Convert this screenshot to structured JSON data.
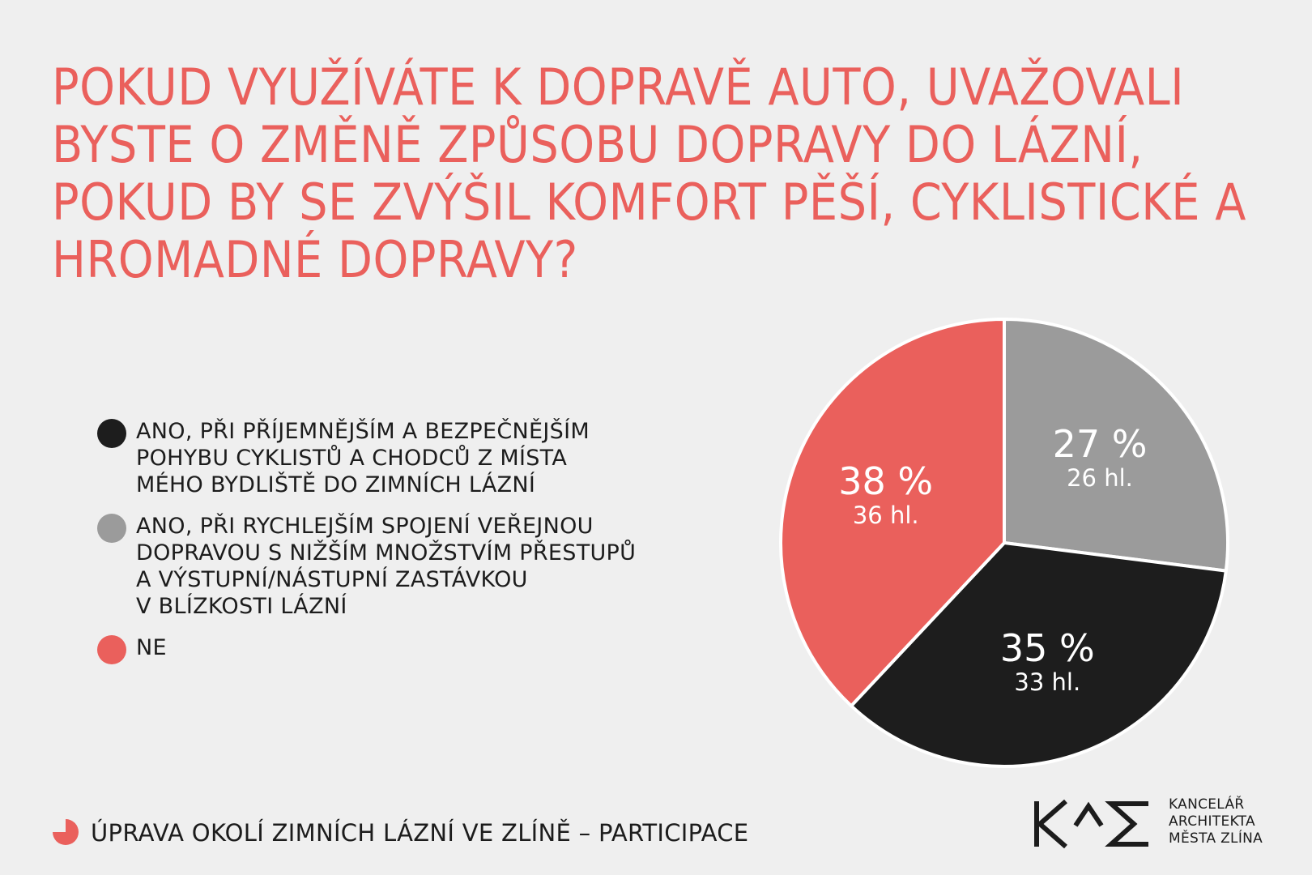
{
  "title": "POKUD VYUŽÍVÁTE K DOPRAVĚ AUTO, UVAŽOVALI BYSTE O ZMĚNĚ ZPŮSOBU DOPRAVY DO LÁZNÍ, POKUD BY SE ZVÝŠIL KOMFORT PĚŠÍ, CYKLISTICKÉ A HROMADNÉ DOPRAVY?",
  "colors": {
    "accent": "#ea605c",
    "black": "#1d1d1d",
    "gray": "#9b9b9b",
    "background": "#efefef"
  },
  "legend": [
    {
      "label": "ANO, PŘI PŘÍJEMNĚJŠÍM A BEZPEČNĚJŠÍM\nPOHYBU CYKLISTŮ A CHODCŮ Z MÍSTA\nMÉHO BYDLIŠTĚ DO ZIMNÍCH LÁZNÍ",
      "color": "#1d1d1d"
    },
    {
      "label": "ANO, PŘI RYCHLEJŠÍM SPOJENÍ VEŘEJNOU\nDOPRAVOU S NIŽŠÍM MNOŽSTVÍM PŘESTUPŮ\nA VÝSTUPNÍ/NÁSTUPNÍ ZASTÁVKOU\nV BLÍZKOSTI LÁZNÍ",
      "color": "#9b9b9b"
    },
    {
      "label": "NE",
      "color": "#ea605c"
    }
  ],
  "chart_data": {
    "type": "pie",
    "start": "12 o'clock, clockwise",
    "slices": [
      {
        "category": "ANO, PŘI RYCHLEJŠÍM SPOJENÍ VEŘEJNOU DOPRAVOU S NIŽŠÍM MNOŽSTVÍM PŘESTUPŮ A VÝSTUPNÍ/NÁSTUPNÍ ZASTÁVKOU V BLÍZKOSTI LÁZNÍ",
        "percent": 27,
        "percent_label": "27 %",
        "votes": 26,
        "votes_label": "26 hl.",
        "color": "#9b9b9b"
      },
      {
        "category": "ANO, PŘI PŘÍJEMNĚJŠÍM A BEZPEČNĚJŠÍM POHYBU CYKLISTŮ A CHODCŮ Z MÍSTA MÉHO BYDLIŠTĚ DO ZIMNÍCH LÁZNÍ",
        "percent": 35,
        "percent_label": "35 %",
        "votes": 33,
        "votes_label": "33 hl.",
        "color": "#1d1d1d"
      },
      {
        "category": "NE",
        "percent": 38,
        "percent_label": "38 %",
        "votes": 36,
        "votes_label": "36 hl.",
        "color": "#ea605c"
      }
    ]
  },
  "footer": {
    "text": "ÚPRAVA OKOLÍ ZIMNÍCH LÁZNÍ VE ZLÍNĚ – PARTICIPACE",
    "icon": "pie-chart-icon"
  },
  "logo": {
    "mark": "KAM",
    "lines": [
      "KANCELÁŘ",
      "ARCHITEKTA",
      "MĚSTA ZLÍNA"
    ]
  }
}
